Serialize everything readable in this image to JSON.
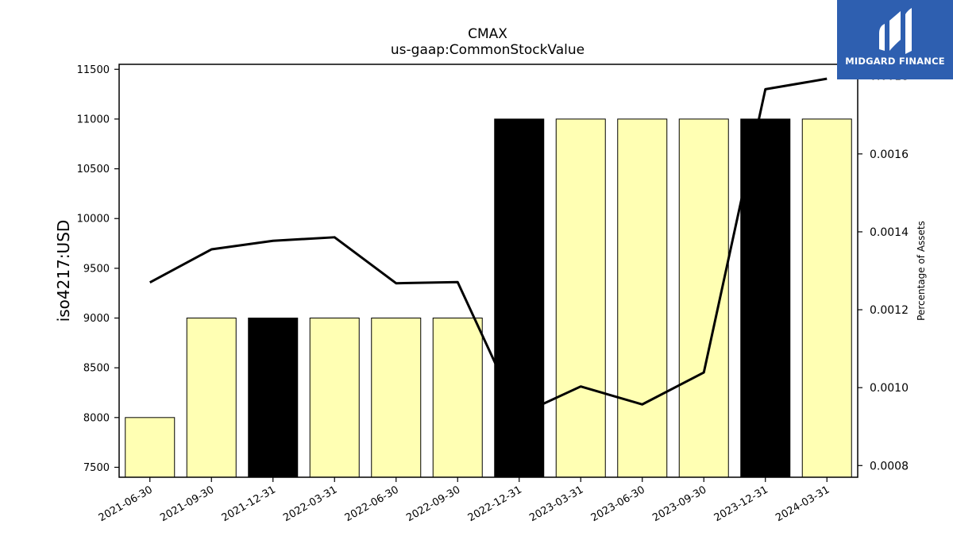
{
  "logo": {
    "text": "MIDGARD FINANCE"
  },
  "chart_data": {
    "type": "bar",
    "title": "CMAX",
    "subtitle": "us-gaap:CommonStockValue",
    "ylabel": "iso4217:USD",
    "y2label": "Percentage of Assets",
    "categories": [
      "2021-06-30",
      "2021-09-30",
      "2021-12-31",
      "2022-03-31",
      "2022-06-30",
      "2022-09-30",
      "2022-12-31",
      "2023-03-31",
      "2023-06-30",
      "2023-09-30",
      "2023-12-31",
      "2024-03-31"
    ],
    "values": [
      8000,
      9000,
      9000,
      9000,
      9000,
      9000,
      11000,
      11000,
      11000,
      11000,
      11000,
      11000
    ],
    "bar_colors": [
      "#ffffb3",
      "#ffffb3",
      "#000000",
      "#ffffb3",
      "#ffffb3",
      "#ffffb3",
      "#000000",
      "#ffffb3",
      "#ffffb3",
      "#ffffb3",
      "#000000",
      "#ffffb3"
    ],
    "ylim": [
      7400,
      11550
    ],
    "yticks": [
      7500,
      8000,
      8500,
      9000,
      9500,
      10000,
      10500,
      11000,
      11500
    ],
    "line": {
      "axis": "right",
      "values": [
        0.00127,
        0.001355,
        0.001377,
        0.001386,
        0.001268,
        0.001271,
        0.00093,
        0.001003,
        0.000957,
        0.001039,
        0.001766,
        0.001793
      ]
    },
    "y2lim": [
      0.00077,
      0.00183
    ],
    "y2ticks": [
      0.0008,
      0.001,
      0.0012,
      0.0014,
      0.0016,
      0.0018
    ],
    "y2tick_labels": [
      "0.0008",
      "0.0010",
      "0.0012",
      "0.0014",
      "0.0016",
      "0.0018"
    ],
    "grid": false
  }
}
